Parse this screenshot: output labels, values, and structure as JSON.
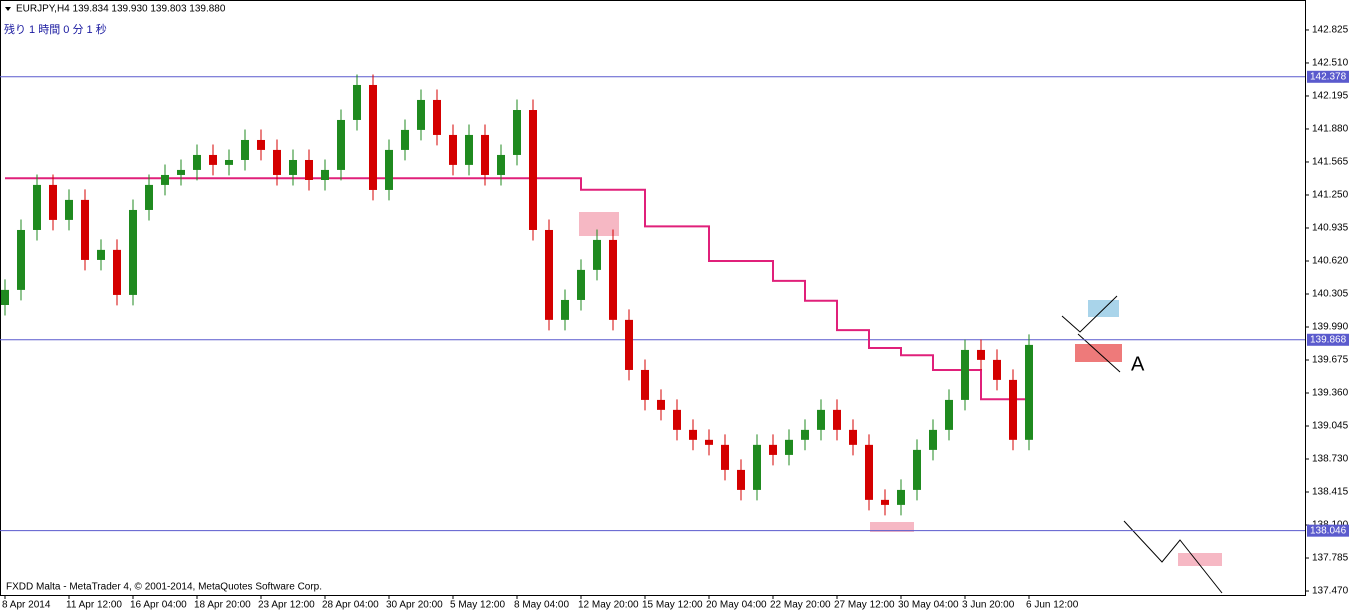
{
  "chart_data": {
    "type": "candlestick",
    "header": "EURJPY,H4  139.834 139.930 139.803 139.880",
    "timer": "残り 1 時間 0 分 1 秒",
    "footer": "FXDD Malta - MetaTrader 4, © 2001-2014, MetaQuotes Software Corp.",
    "annotation": "A",
    "up_color": "#1f8a1f",
    "down_color": "#d40000",
    "xlim": [
      -0.3125,
      81.25
    ],
    "ylim": [
      137.432,
      143.111
    ],
    "xticks": [
      {
        "value": 0,
        "label": "8 Apr 2014"
      },
      {
        "value": 4,
        "label": "11 Apr 12:00"
      },
      {
        "value": 8,
        "label": "16 Apr 04:00"
      },
      {
        "value": 12,
        "label": "18 Apr 20:00"
      },
      {
        "value": 16,
        "label": "23 Apr 12:00"
      },
      {
        "value": 20,
        "label": "28 Apr 04:00"
      },
      {
        "value": 24,
        "label": "30 Apr 20:00"
      },
      {
        "value": 28,
        "label": "5 May 12:00"
      },
      {
        "value": 32,
        "label": "8 May 04:00"
      },
      {
        "value": 36,
        "label": "12 May 20:00"
      },
      {
        "value": 40,
        "label": "15 May 12:00"
      },
      {
        "value": 44,
        "label": "20 May 04:00"
      },
      {
        "value": 48,
        "label": "22 May 20:00"
      },
      {
        "value": 52,
        "label": "27 May 12:00"
      },
      {
        "value": 56,
        "label": "30 May 04:00"
      },
      {
        "value": 60,
        "label": "3 Jun 20:00"
      },
      {
        "value": 64,
        "label": "6 Jun 12:00"
      }
    ],
    "yticks": [
      142.825,
      {
        "value": 142.51,
        "label": "142.510"
      },
      142.195,
      {
        "value": 141.88,
        "label": "141.880"
      },
      141.565,
      {
        "value": 141.25,
        "label": "141.250"
      },
      140.935,
      {
        "value": 140.62,
        "label": "140.620"
      },
      140.305,
      {
        "value": 139.99,
        "label": "139.990"
      },
      139.675,
      {
        "value": 139.36,
        "label": "139.360"
      },
      139.045,
      {
        "value": 138.73,
        "label": "138.730"
      },
      138.415,
      {
        "value": 138.1,
        "label": "138.100"
      },
      137.785,
      {
        "value": 137.47,
        "label": "137.470"
      }
    ],
    "hlines": [
      142.378,
      139.868,
      138.046
    ],
    "hline_color": "#5a5acd",
    "open": [
      140.2,
      140.344,
      140.916,
      141.346,
      141.012,
      141.203,
      140.63,
      140.726,
      140.296,
      141.107,
      141.346,
      141.441,
      141.489,
      141.632,
      141.537,
      141.584,
      141.775,
      141.68,
      141.441,
      141.584,
      141.393,
      141.489,
      141.966,
      142.3,
      141.298,
      141.68,
      141.871,
      142.157,
      141.823,
      141.537,
      141.823,
      141.441,
      141.632,
      142.061,
      140.916,
      140.058,
      140.248,
      140.535,
      140.821,
      140.058,
      139.58,
      139.294,
      139.199,
      139.008,
      138.913,
      138.865,
      138.626,
      138.435,
      138.865,
      138.769,
      138.913,
      139.008,
      139.199,
      139.008,
      138.865,
      138.34,
      138.292,
      138.435,
      138.817,
      139.008,
      139.294,
      139.771,
      139.676,
      139.485,
      138.913
    ],
    "high": [
      140.444,
      141.016,
      141.446,
      141.446,
      141.303,
      141.303,
      140.826,
      140.826,
      141.207,
      141.446,
      141.541,
      141.589,
      141.732,
      141.732,
      141.684,
      141.875,
      141.875,
      141.78,
      141.684,
      141.684,
      141.589,
      142.066,
      142.4,
      142.4,
      141.78,
      141.971,
      142.257,
      142.257,
      141.923,
      141.923,
      141.923,
      141.732,
      142.161,
      142.161,
      141.016,
      140.348,
      140.635,
      140.921,
      140.921,
      140.158,
      139.68,
      139.394,
      139.299,
      139.108,
      139.013,
      138.965,
      138.726,
      138.965,
      138.965,
      139.013,
      139.108,
      139.299,
      139.299,
      139.108,
      138.965,
      138.44,
      138.535,
      138.917,
      139.108,
      139.394,
      139.871,
      139.871,
      139.776,
      139.585,
      139.919
    ],
    "low": [
      140.1,
      140.244,
      140.816,
      140.912,
      140.912,
      140.53,
      140.53,
      140.196,
      140.196,
      141.007,
      141.246,
      141.341,
      141.389,
      141.437,
      141.437,
      141.484,
      141.58,
      141.341,
      141.341,
      141.293,
      141.293,
      141.389,
      141.866,
      141.198,
      141.198,
      141.58,
      141.771,
      141.723,
      141.437,
      141.437,
      141.341,
      141.341,
      141.532,
      140.816,
      139.958,
      139.958,
      140.148,
      140.435,
      139.958,
      139.48,
      139.194,
      139.099,
      138.908,
      138.813,
      138.765,
      138.526,
      138.335,
      138.335,
      138.669,
      138.669,
      138.813,
      138.908,
      138.908,
      138.765,
      138.24,
      138.192,
      138.192,
      138.335,
      138.717,
      138.908,
      139.194,
      139.576,
      139.385,
      138.813,
      138.813
    ],
    "close": [
      140.344,
      140.916,
      141.346,
      141.012,
      141.203,
      140.63,
      140.726,
      140.296,
      141.107,
      141.346,
      141.441,
      141.489,
      141.632,
      141.537,
      141.584,
      141.775,
      141.68,
      141.441,
      141.584,
      141.393,
      141.489,
      141.966,
      142.3,
      141.298,
      141.68,
      141.871,
      142.157,
      141.823,
      141.537,
      141.823,
      141.441,
      141.632,
      142.061,
      140.916,
      140.058,
      140.248,
      140.535,
      140.821,
      140.058,
      139.58,
      139.294,
      139.199,
      139.008,
      138.913,
      138.865,
      138.626,
      138.435,
      138.865,
      138.769,
      138.913,
      139.008,
      139.199,
      139.008,
      138.865,
      138.34,
      138.292,
      138.435,
      138.817,
      139.008,
      139.294,
      139.771,
      139.676,
      139.485,
      138.913,
      139.819
    ],
    "overlay": {
      "color": "#e0207a",
      "x": [
        0,
        32,
        36,
        40,
        44,
        48,
        50,
        52,
        54,
        56,
        58,
        61,
        64
      ],
      "values": [
        141.41,
        141.41,
        141.3,
        140.95,
        140.62,
        140.43,
        140.24,
        139.96,
        139.79,
        139.72,
        139.58,
        139.3,
        139.3
      ]
    }
  }
}
